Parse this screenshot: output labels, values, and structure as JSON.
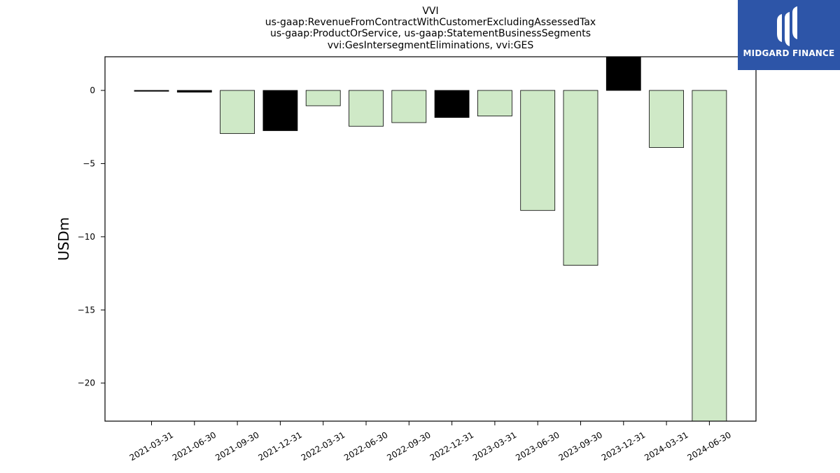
{
  "chart_data": {
    "type": "bar",
    "title": [
      "VVI",
      "us-gaap:RevenueFromContractWithCustomerExcludingAssessedTax",
      "us-gaap:ProductOrService, us-gaap:StatementBusinessSegments",
      "vvi:GesIntersegmentEliminations, vvi:GES"
    ],
    "xlabel": "",
    "ylabel": "USDm",
    "categories": [
      "2021-03-31",
      "2021-06-30",
      "2021-09-30",
      "2021-12-31",
      "2022-03-31",
      "2022-06-30",
      "2022-09-30",
      "2022-12-31",
      "2023-03-31",
      "2023-06-30",
      "2023-09-30",
      "2023-12-31",
      "2024-03-31",
      "2024-06-30"
    ],
    "values": [
      -0.05,
      -0.12,
      -2.95,
      -2.75,
      -1.05,
      -2.45,
      -2.2,
      -1.85,
      -1.75,
      -8.2,
      -11.95,
      2.4,
      -3.9,
      -22.6
    ],
    "bar_colors": [
      "#000000",
      "#000000",
      "#cfe9c7",
      "#000000",
      "#cfe9c7",
      "#cfe9c7",
      "#cfe9c7",
      "#000000",
      "#cfe9c7",
      "#cfe9c7",
      "#cfe9c7",
      "#000000",
      "#cfe9c7",
      "#cfe9c7"
    ],
    "ylim": [
      -22.6,
      2.3
    ],
    "yticks": [
      0,
      -5,
      -10,
      -15,
      -20
    ],
    "grid": false,
    "legend": "none"
  },
  "logo": {
    "brand": "MIDGARD FINANCE",
    "background": "#2d55a8"
  }
}
